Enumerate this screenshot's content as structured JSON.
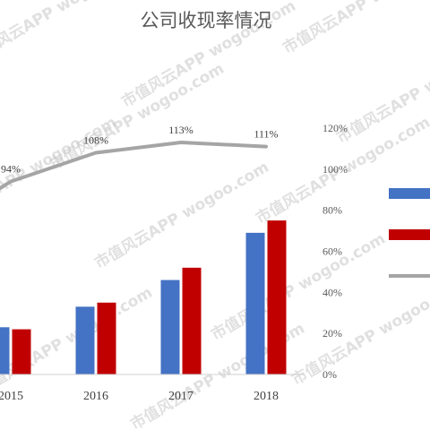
{
  "watermark": "市值风云APP wogoo.com",
  "chart_data": {
    "type": "bar",
    "title": "公司收现率情况",
    "categories": [
      "2015",
      "2016",
      "2017",
      "2018"
    ],
    "series": [
      {
        "kind": "bar",
        "color": "#4472c4",
        "values": [
          0.23,
          0.33,
          0.46,
          0.69
        ]
      },
      {
        "kind": "bar",
        "color": "#c00000",
        "values": [
          0.22,
          0.35,
          0.52,
          0.75
        ]
      },
      {
        "kind": "line",
        "axis": "right",
        "color": "#a5a5a5",
        "values": [
          0.94,
          1.08,
          1.13,
          1.11
        ],
        "labels": [
          "94%",
          "108%",
          "113%",
          "111%"
        ]
      }
    ],
    "right_axis": {
      "ylim": [
        0,
        1.2
      ],
      "ticks": [
        "0%",
        "20%",
        "40%",
        "60%",
        "80%",
        "100%",
        "120%"
      ]
    },
    "legend": {
      "placement": "right",
      "colors": [
        "#4472c4",
        "#c00000",
        "#a5a5a5"
      ]
    },
    "grid": false
  }
}
